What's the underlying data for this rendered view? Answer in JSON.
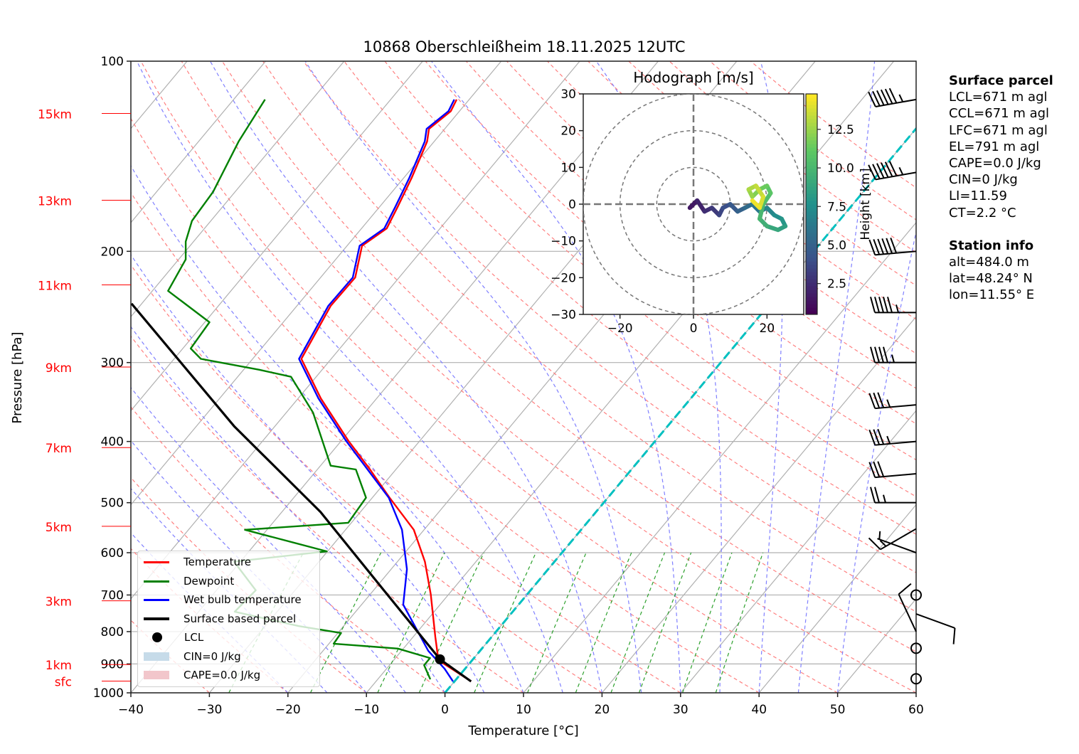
{
  "chart_data": {
    "type": "line",
    "subtype": "skew-T log-P diagram",
    "title": "10868 Oberschleißheim 18.11.2025 12UTC",
    "xlabel": "Temperature [°C]",
    "ylabel": "Pressure [hPa]",
    "xlim": [
      -40,
      60
    ],
    "ylim": [
      1000,
      100
    ],
    "x_ticks": [
      -40,
      -30,
      -20,
      -10,
      0,
      10,
      20,
      30,
      40,
      50,
      60
    ],
    "y_ticks": [
      100,
      200,
      300,
      400,
      500,
      600,
      700,
      800,
      900,
      1000
    ],
    "height_ticks": [
      {
        "label": "15km",
        "p": 121
      },
      {
        "label": "13km",
        "p": 166
      },
      {
        "label": "11km",
        "p": 226
      },
      {
        "label": "9km",
        "p": 305
      },
      {
        "label": "7km",
        "p": 409
      },
      {
        "label": "5km",
        "p": 545
      },
      {
        "label": "3km",
        "p": 715
      },
      {
        "label": "1km",
        "p": 902
      },
      {
        "label": "sfc",
        "p": 958
      }
    ],
    "grid": true,
    "skew_isotherm_highlight_c": 0,
    "series": [
      {
        "name": "Temperature",
        "color": "#ff0000",
        "p": [
          959,
          888,
          815,
          698,
          620,
          552,
          491,
          443,
          399,
          342,
          296,
          244,
          220,
          196,
          184,
          170,
          153,
          134,
          128,
          120,
          115
        ],
        "t": [
          2.1,
          -4.3,
          -7.2,
          -12.3,
          -16.5,
          -21.3,
          -27.8,
          -33.3,
          -39.1,
          -47.1,
          -53.8,
          -55.7,
          -55.6,
          -58.1,
          -56.8,
          -57.7,
          -59.0,
          -60.9,
          -62.0,
          -61.1,
          -61.6
        ]
      },
      {
        "name": "Dewpoint",
        "color": "#008000",
        "p": [
          952,
          904,
          881,
          851,
          836,
          804,
          784,
          744,
          688,
          620,
          597,
          552,
          538,
          491,
          443,
          437,
          360,
          316,
          308,
          296,
          285,
          259,
          231,
          206,
          193,
          179,
          161,
          134,
          115
        ],
        "t": [
          -3.3,
          -5.6,
          -5.6,
          -10.7,
          -19.4,
          -19.6,
          -25.7,
          -35.4,
          -35.0,
          -40.8,
          -30.1,
          -42.8,
          -30.4,
          -30.8,
          -35.1,
          -38.7,
          -46.6,
          -53.2,
          -58.0,
          -66.6,
          -69.0,
          -69.4,
          -78.0,
          -79.1,
          -81.0,
          -82.4,
          -82.8,
          -84.9,
          -86.0
        ]
      },
      {
        "name": "Wet bulb temperature",
        "color": "#0000ff",
        "p": [
          959,
          916,
          858,
          725,
          637,
          552,
          491,
          443,
          399,
          342,
          296,
          244,
          220,
          196,
          184,
          170,
          153,
          134,
          128,
          120,
          115
        ],
        "t": [
          -0.2,
          -2.6,
          -6.6,
          -14.7,
          -18.0,
          -22.8,
          -27.9,
          -33.6,
          -39.4,
          -47.4,
          -54.1,
          -56.0,
          -55.9,
          -58.4,
          -57.1,
          -58.0,
          -59.3,
          -61.2,
          -62.3,
          -61.4,
          -61.9
        ]
      },
      {
        "name": "Surface based parcel",
        "color": "#000000",
        "p": [
          959,
          885,
          688,
          517,
          379,
          242
        ],
        "t": [
          2.1,
          -4.2,
          -18.7,
          -35.1,
          -55.1,
          -81.3
        ]
      }
    ],
    "lcl_point": {
      "p": 885,
      "t": -4.2
    },
    "legend": [
      {
        "label": "Temperature",
        "kind": "line",
        "color": "#ff0000"
      },
      {
        "label": "Dewpoint",
        "kind": "line",
        "color": "#008000"
      },
      {
        "label": "Wet bulb temperature",
        "kind": "line",
        "color": "#0000ff"
      },
      {
        "label": "Surface based parcel",
        "kind": "line",
        "color": "#000000"
      },
      {
        "label": "LCL",
        "kind": "marker",
        "color": "#000000"
      },
      {
        "label": "CIN=0 J/kg",
        "kind": "patch",
        "color": "#c6dbe9"
      },
      {
        "label": "CAPE=0.0 J/kg",
        "kind": "patch",
        "color": "#f2c6cb"
      }
    ],
    "legend_position": "lower-left",
    "wind_barbs": [
      {
        "p": 115,
        "speed_kt": 65,
        "dir_deg": 260
      },
      {
        "p": 150,
        "speed_kt": 65,
        "dir_deg": 260
      },
      {
        "p": 200,
        "speed_kt": 60,
        "dir_deg": 265
      },
      {
        "p": 250,
        "speed_kt": 55,
        "dir_deg": 270
      },
      {
        "p": 300,
        "speed_kt": 45,
        "dir_deg": 270
      },
      {
        "p": 350,
        "speed_kt": 35,
        "dir_deg": 265
      },
      {
        "p": 400,
        "speed_kt": 35,
        "dir_deg": 265
      },
      {
        "p": 450,
        "speed_kt": 30,
        "dir_deg": 265
      },
      {
        "p": 500,
        "speed_kt": 25,
        "dir_deg": 270
      },
      {
        "p": 550,
        "speed_kt": 15,
        "dir_deg": 240
      },
      {
        "p": 600,
        "speed_kt": 5,
        "dir_deg": 290
      },
      {
        "p": 700,
        "speed_kt": 0,
        "dir_deg": 0
      },
      {
        "p": 750,
        "speed_kt": 10,
        "dir_deg": 110
      },
      {
        "p": 800,
        "speed_kt": 10,
        "dir_deg": 335
      },
      {
        "p": 850,
        "speed_kt": 0,
        "dir_deg": 0
      },
      {
        "p": 950,
        "speed_kt": 0,
        "dir_deg": 0
      }
    ],
    "hodograph": {
      "title": "Hodograph [m/s]",
      "xlim": [
        -30,
        30
      ],
      "ylim": [
        -30,
        30
      ],
      "x_ticks": [
        -20,
        0,
        20
      ],
      "y_ticks": [
        -30,
        -20,
        -10,
        0,
        10,
        20,
        30
      ],
      "rings": [
        10,
        20,
        30
      ],
      "colorbar_label": "Height [km]",
      "colorbar_ticks": [
        2.5,
        5.0,
        7.5,
        10.0,
        12.5
      ],
      "colorbar_range": [
        0.5,
        14.8
      ],
      "u": [
        0,
        -1,
        1,
        3,
        5,
        7,
        8,
        10,
        12,
        14,
        16,
        18,
        20,
        22,
        24,
        25,
        23,
        20,
        18,
        19,
        21,
        20,
        18,
        16,
        15,
        17,
        19,
        18,
        16
      ],
      "v": [
        0,
        -1,
        1,
        -2,
        -1,
        -3,
        -1,
        0,
        -2,
        -1,
        0,
        -2,
        -1,
        -3,
        -4,
        -6,
        -7,
        -6,
        -4,
        0,
        3,
        5,
        4,
        2,
        4,
        5,
        2,
        -1,
        1
      ],
      "height_km": [
        0.5,
        1.0,
        1.5,
        2.0,
        2.5,
        3.0,
        3.5,
        4.0,
        4.5,
        5.0,
        5.5,
        6.0,
        6.5,
        7.0,
        7.5,
        8.0,
        8.5,
        9.0,
        9.5,
        10.0,
        10.5,
        11.0,
        11.5,
        12.0,
        12.5,
        13.0,
        13.5,
        14.0,
        14.5
      ]
    }
  },
  "info_panel": {
    "surface_parcel": {
      "heading": "Surface parcel",
      "lines": [
        "LCL=671 m agl",
        "CCL=671 m agl",
        "LFC=671 m agl",
        "EL=791 m agl",
        "CAPE=0.0 J/kg",
        "CIN=0 J/kg",
        "LI=11.59",
        "CT=2.2 °C"
      ]
    },
    "station_info": {
      "heading": "Station info",
      "lines": [
        "alt=484.0 m",
        "lat=48.24° N",
        "lon=11.55° E"
      ]
    }
  },
  "colors": {
    "dry_adiabat": "#ff8080",
    "moist_adiabat": "#8080ff",
    "mixing_ratio": "#2ca02c",
    "isotherm_zero": "#00c0c0",
    "grid": "#b0b0b0",
    "height_label": "#ff0000"
  }
}
